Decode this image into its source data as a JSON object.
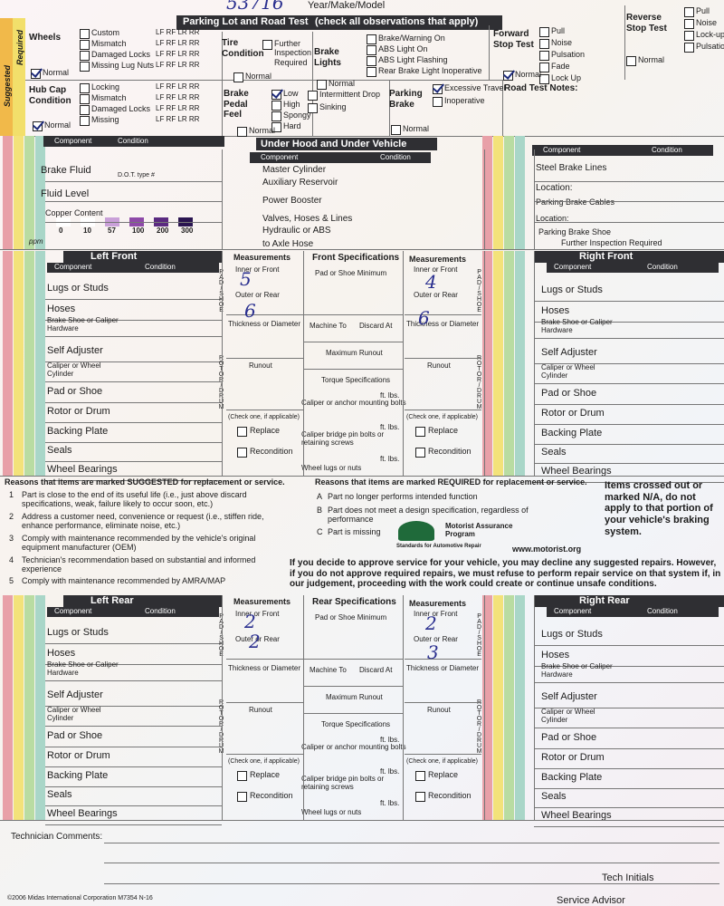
{
  "header": {
    "ro_number": "53716",
    "year_make_model": "Year/Make/Model"
  },
  "road_test": {
    "title": "Parking Lot and Road Test",
    "subtitle": "(check all observations that apply)",
    "suggested": "Suggested",
    "required": "Required",
    "groups": [
      {
        "label": "Wheels",
        "options": [
          "Custom",
          "Mismatch",
          "Damaged Locks",
          "Missing Lug Nuts"
        ],
        "positions": "LF RF LR RR",
        "normal": "Normal",
        "normal_checked": true
      },
      {
        "label": "Hub Cap Condition",
        "options": [
          "Locking",
          "Mismatch",
          "Damaged Locks",
          "Missing"
        ],
        "positions": "LF RF LR RR",
        "normal": "Normal",
        "normal_checked": true
      },
      {
        "label": "Tire Condition",
        "options": [
          "Further Inspection Required"
        ],
        "normal": "Normal"
      },
      {
        "label": "Brake Pedal Feel",
        "options": [
          "Low",
          "High",
          "Spongy",
          "Hard"
        ],
        "checked": [
          true,
          false,
          false,
          false
        ],
        "normal": "Normal"
      },
      {
        "label": "Brake Lights",
        "options": [
          "Brake/Warning On",
          "ABS Light On",
          "ABS Light Flashing",
          "Rear Brake Light Inoperative"
        ],
        "normal": "Normal"
      },
      {
        "options": [
          "Intermittent Drop",
          "Sinking"
        ]
      },
      {
        "label": "Parking Brake",
        "options": [
          "Excessive Travel",
          "Inoperative"
        ],
        "checked": [
          true,
          false
        ],
        "normal": "Normal"
      },
      {
        "label": "Forward Stop Test",
        "options": [
          "Pull",
          "Noise",
          "Pulsation",
          "Fade",
          "Lock Up"
        ],
        "normal": "Normal",
        "normal_checked": true
      },
      {
        "label": "Reverse Stop Test",
        "options": [
          "Pull",
          "Noise",
          "Lock-up",
          "Pulsation"
        ],
        "normal": "Normal"
      }
    ],
    "notes_label": "Road Test Notes:"
  },
  "under_hood": {
    "title": "Under Hood and Under Vehicle",
    "component": "Component",
    "condition": "Condition",
    "left": [
      "Brake Fluid",
      "D.O.T. type #",
      "Fluid Level",
      "Copper Content"
    ],
    "ppm_values": [
      "0",
      "10",
      "57",
      "100",
      "200",
      "300"
    ],
    "ppm": "ppm",
    "middle": [
      "Master Cylinder",
      "Auxiliary Reservoir",
      "Power Booster",
      "Valves, Hoses & Lines",
      "Hydraulic or ABS",
      "to Axle Hose"
    ],
    "right": [
      "Steel Brake Lines",
      "Location:",
      "Parking Brake Cables",
      "Location:",
      "Parking Brake Shoe",
      "Further Inspection Required"
    ]
  },
  "wheels": [
    {
      "left_title": "Left Front",
      "specs_title": "Front Specifications",
      "right_title": "Right Front",
      "measurements": "Measurements",
      "component": "Component",
      "condition": "Condition",
      "components": [
        "Lugs or Studs",
        "Hoses",
        "Brake Shoe or Caliper Hardware",
        "Self Adjuster",
        "Caliper or Wheel Cylinder",
        "Pad or Shoe",
        "Rotor or Drum",
        "Backing Plate",
        "Seals",
        "Wheel Bearings"
      ],
      "pad_shoe": "PAD/SHOE",
      "rotor_drum": "ROTOR/DRUM",
      "inner": "Inner or Front",
      "outer": "Outer or Rear",
      "thickness": "Thickness or Diameter",
      "runout": "Runout",
      "check_one": "(Check one, if applicable)",
      "replace": "Replace",
      "recondition": "Recondition",
      "specs": {
        "pad_min": "Pad or Shoe Minimum",
        "machine": "Machine To",
        "discard": "Discard At",
        "max_runout": "Maximum Runout",
        "torque": "Torque Specifications",
        "ft_lbs": "ft. lbs.",
        "caliper_bolts": "Caliper or anchor mounting bolts",
        "bridge": "Caliper bridge pin bolts or retaining screws",
        "lugs": "Wheel lugs or nuts"
      },
      "handwritten": [
        "5",
        "6",
        "4",
        "6"
      ]
    },
    {
      "left_title": "Left Rear",
      "specs_title": "Rear Specifications",
      "right_title": "Right Rear",
      "measurements": "Measurements",
      "component": "Component",
      "condition": "Condition",
      "components": [
        "Lugs or Studs",
        "Hoses",
        "Brake Shoe or Caliper Hardware",
        "Self Adjuster",
        "Caliper or Wheel Cylinder",
        "Pad or Shoe",
        "Rotor or Drum",
        "Backing Plate",
        "Seals",
        "Wheel Bearings"
      ],
      "pad_shoe": "PAD/SHOE",
      "rotor_drum": "ROTOR/DRUM",
      "inner": "Inner or Front",
      "outer": "Outer or Rear",
      "thickness": "Thickness or Diameter",
      "runout": "Runout",
      "check_one": "(Check one, if applicable)",
      "replace": "Replace",
      "recondition": "Recondition",
      "specs": {
        "pad_min": "Pad or Shoe Minimum",
        "machine": "Machine To",
        "discard": "Discard At",
        "max_runout": "Maximum Runout",
        "torque": "Torque Specifications",
        "ft_lbs": "ft. lbs.",
        "caliper_bolts": "Caliper or anchor mounting bolts",
        "bridge": "Caliper bridge pin bolts or retaining screws",
        "lugs": "Wheel lugs or nuts"
      },
      "handwritten": [
        "2",
        "2",
        "2",
        "3"
      ]
    }
  ],
  "reasons": {
    "suggested_heading": "Reasons that items are marked SUGGESTED for replacement or service.",
    "suggested": [
      {
        "num": "1",
        "text": "Part is close to the end of its useful life (i.e., just above discard specifications, weak, failure likely to occur soon, etc.)"
      },
      {
        "num": "2",
        "text": "Address a customer need, convenience or request (i.e., stiffen ride, enhance performance, eliminate noise, etc.)"
      },
      {
        "num": "3",
        "text": "Comply with maintenance recommended by the vehicle's original equipment manufacturer (OEM)"
      },
      {
        "num": "4",
        "text": "Technician's recommendation based on substantial and informed experience"
      },
      {
        "num": "5",
        "text": "Comply with maintenance recommended by AMRA/MAP"
      }
    ],
    "required_heading": "Reasons that items are marked REQUIRED for replacement or service.",
    "required": [
      {
        "num": "A",
        "text": "Part no longer performs intended function"
      },
      {
        "num": "B",
        "text": "Part does not meet a design specification, regardless of performance"
      },
      {
        "num": "C",
        "text": "Part is missing"
      }
    ],
    "crossed_note": "Items crossed out or marked N/A, do not apply to that portion of your vehicle's braking system.",
    "logo": "Motorist Assurance Program",
    "logo_tagline": "Standards for Automotive Repair",
    "website": "www.motorist.org",
    "decline_note": "If you decide to approve service for your vehicle, you may decline any suggested repairs. However, if you do not approve required repairs, we must refuse to perform repair service on that system if, in our judgement, proceeding with the work could create or continue unsafe conditions."
  },
  "footer": {
    "technician_comments": "Technician Comments:",
    "tech_initials": "Tech Initials",
    "service_advisor": "Service Advisor",
    "copyright": "©2006 Midas International Corporation M7354 N-16"
  }
}
